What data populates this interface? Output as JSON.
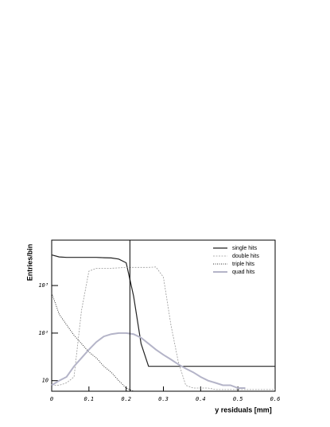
{
  "chart_data": {
    "type": "line",
    "xlabel": "y residuals [mm]",
    "ylabel": "Entries/bin",
    "log_y": true,
    "x": [
      0,
      0.02,
      0.04,
      0.06,
      0.08,
      0.1,
      0.12,
      0.14,
      0.16,
      0.18,
      0.2,
      0.22,
      0.24,
      0.26,
      0.28,
      0.3,
      0.32,
      0.34,
      0.36,
      0.38,
      0.4,
      0.42,
      0.44,
      0.46,
      0.48,
      0.5,
      0.52,
      0.54,
      0.56,
      0.58,
      0.6
    ],
    "series": [
      {
        "name": "single hits",
        "color": "#222222",
        "dash": "",
        "width": 1.2,
        "values": [
          4400,
          4000,
          3900,
          3900,
          3900,
          3900,
          3900,
          3850,
          3800,
          3600,
          3000,
          600,
          60,
          20,
          20,
          20,
          20,
          20,
          20,
          20,
          20,
          20,
          20,
          20,
          20,
          20,
          20,
          20,
          20,
          20,
          20
        ]
      },
      {
        "name": "double hits",
        "color": "#999999",
        "dash": "2,1.5",
        "width": 0.8,
        "values": [
          8,
          8,
          9,
          12,
          300,
          2000,
          2300,
          2300,
          2300,
          2350,
          2400,
          2400,
          2400,
          2400,
          2450,
          1500,
          150,
          25,
          8,
          7,
          7,
          7,
          6.5,
          6.5,
          6.5,
          6.5,
          6.5,
          6.5,
          6.5,
          6.5,
          6.5
        ]
      },
      {
        "name": "triple hits",
        "color": "#333333",
        "dash": "1,1.5",
        "width": 1,
        "values": [
          700,
          250,
          150,
          90,
          60,
          40,
          30,
          20,
          15,
          10,
          7,
          6,
          null,
          null,
          null,
          null,
          null,
          null,
          null,
          null,
          null,
          null,
          null,
          null,
          null,
          null,
          null,
          null,
          null,
          null,
          null
        ]
      },
      {
        "name": "quad hits",
        "color": "#b4b4c8",
        "dash": "",
        "width": 2,
        "values": [
          8,
          10,
          12,
          20,
          30,
          45,
          65,
          85,
          95,
          100,
          100,
          95,
          80,
          60,
          45,
          35,
          28,
          22,
          18,
          15,
          12,
          10,
          9,
          8,
          8,
          7,
          7,
          null,
          null,
          null,
          null
        ]
      }
    ],
    "vline_x": 0.21,
    "xlim": [
      0,
      0.6
    ],
    "xticks": [
      0,
      0.1,
      0.2,
      0.3,
      0.4,
      0.5,
      0.6
    ],
    "ylim": [
      6,
      9000
    ],
    "yticks": [
      10,
      {
        "value": 100,
        "label": "10²"
      },
      {
        "value": 1000,
        "label": "10³"
      }
    ],
    "legend": "upper right"
  }
}
